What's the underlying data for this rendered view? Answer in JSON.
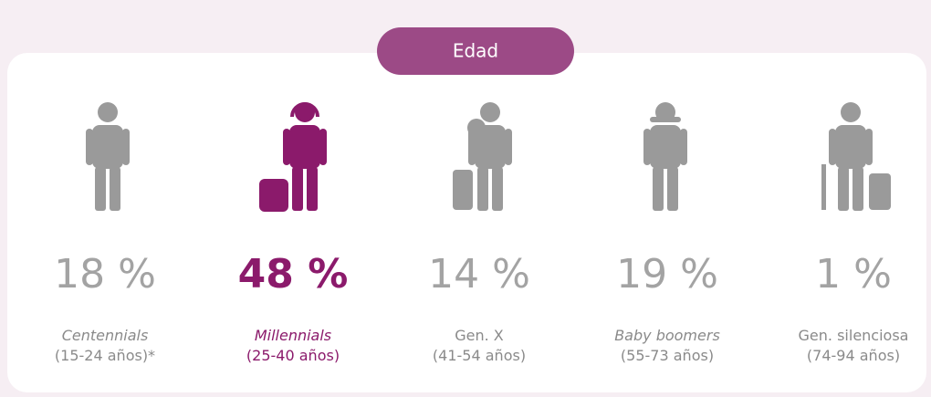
{
  "header": {
    "title": "Edad"
  },
  "groups": [
    {
      "value": "18 %",
      "name": "Centennials",
      "range": "(15-24 años)*"
    },
    {
      "value": "48 %",
      "name": "Millennials",
      "range": "(25-40 años)"
    },
    {
      "value": "14 %",
      "name": "Gen. X",
      "range": "(41-54 años)"
    },
    {
      "value": "19 %",
      "name": "Baby boomers",
      "range": "(55-73 años)"
    },
    {
      "value": "1 %",
      "name": "Gen. silenciosa",
      "range": "(74-94 años)"
    }
  ]
}
